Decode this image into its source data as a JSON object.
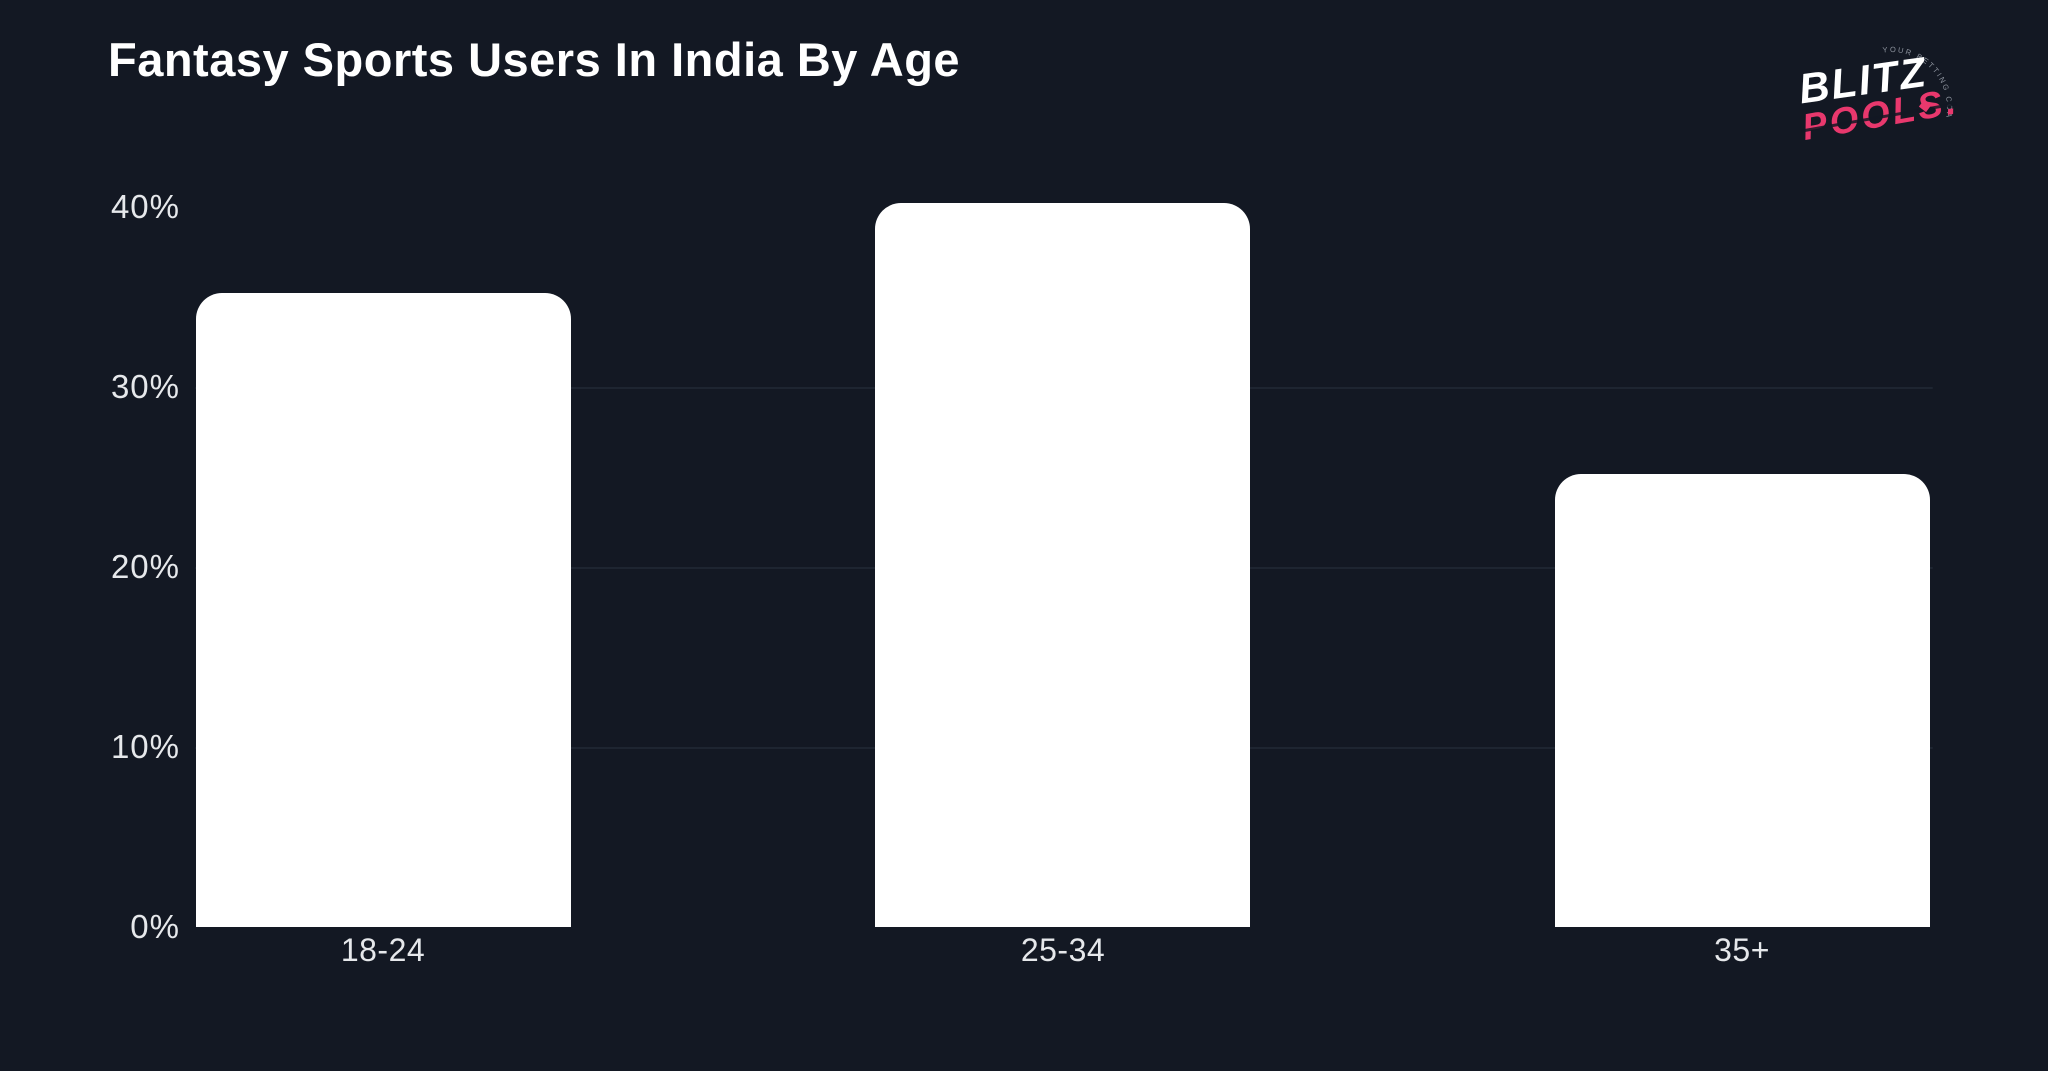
{
  "page": {
    "background_color": "#131823"
  },
  "header": {
    "title": "Fantasy Sports Users In India By Age"
  },
  "logo": {
    "word1": "BLITZ",
    "word2": "POOLS.",
    "arc_text": "YOUR BETTING COACH",
    "accent_color": "#e8386d"
  },
  "chart_data": {
    "type": "bar",
    "title": "Fantasy Sports Users In India By Age",
    "categories": [
      "18-24",
      "25-34",
      "35+"
    ],
    "values": [
      35,
      40,
      25
    ],
    "value_unit": "%",
    "xlabel": "",
    "ylabel": "",
    "ylim": [
      0,
      42
    ],
    "yticks": [
      {
        "value": 40,
        "label": "40%"
      },
      {
        "value": 30,
        "label": "30%"
      },
      {
        "value": 20,
        "label": "20%"
      },
      {
        "value": 10,
        "label": "10%"
      },
      {
        "value": 0,
        "label": "0%"
      }
    ],
    "gridline_values": [
      30,
      20,
      10
    ],
    "bar_color": "#ffffff",
    "grid_color": "#1e2531",
    "legend": "none",
    "grid": "horizontal-only"
  }
}
